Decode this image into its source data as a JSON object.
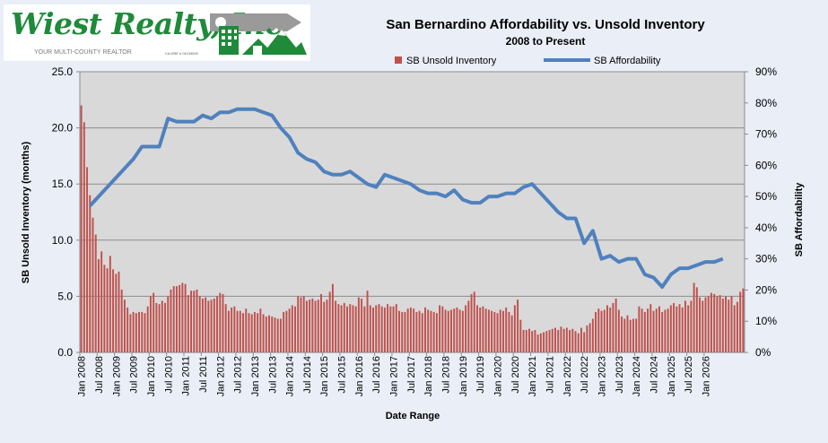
{
  "logo": {
    "name": "Wiest Realty, Inc",
    "tagline": "YOUR MULTI-COUNTY REALTOR",
    "license": "CA DRE # 01193000"
  },
  "chart_data": {
    "type": "bar+line",
    "title": "San Bernardino Affordability vs. Unsold Inventory",
    "subtitle": "2008 to Present",
    "xlabel": "Date Range",
    "ylabel_left": "SB Unsold  Inventory (months)",
    "ylabel_right": "SB Affordability",
    "ylim_left": [
      0,
      25
    ],
    "yticks_left": [
      "0.0",
      "5.0",
      "10.0",
      "15.0",
      "20.0",
      "25.0"
    ],
    "ylim_right": [
      0,
      90
    ],
    "yticks_right": [
      "0%",
      "10%",
      "20%",
      "30%",
      "40%",
      "50%",
      "60%",
      "70%",
      "80%",
      "90%"
    ],
    "legend_placement": "top",
    "colors": {
      "bars": "#c0504d",
      "line": "#4f81bd",
      "plot_bg": "#d9d9d9",
      "grid": "#8c8c8c"
    },
    "series": [
      {
        "name": "SB Unsold Inventory",
        "kind": "bar",
        "axis": "left",
        "frequency": "monthly",
        "start": "Jan 2008"
      },
      {
        "name": "SB Affordability",
        "kind": "line",
        "axis": "right",
        "frequency": "quarterly",
        "start": "Apr 2008"
      }
    ],
    "x_ticks": [
      "Jan 2008",
      "Jul 2008",
      "Jan 2009",
      "Jul 2009",
      "Jan 2010",
      "Jul 2010",
      "Jan 2011",
      "Jul 2011",
      "Jan 2012",
      "Jul 2012",
      "Jan 2013",
      "Jul 2013",
      "Jan 2014",
      "Jul 2014",
      "Jan 2015",
      "Jul 2015",
      "Jan 2016",
      "Jul 2016",
      "Jan 2017",
      "Jul 2017",
      "Jan 2018",
      "Jul 2018",
      "Jan 2019",
      "Jul 2019",
      "Jan 2020",
      "Jul 2020",
      "Jan 2021",
      "Jul 2021",
      "Jan 2022",
      "Jul 2022",
      "Jan 2023",
      "Jul 2023",
      "Jan 2024",
      "Jul 2024",
      "Jan 2025",
      "Jul 2025",
      "Jan 2026"
    ],
    "inventory_monthly": [
      22.0,
      20.5,
      16.5,
      14.0,
      12.0,
      10.5,
      8.3,
      9.0,
      7.8,
      7.5,
      8.6,
      7.4,
      7.0,
      7.2,
      5.6,
      4.7,
      4.0,
      3.4,
      3.6,
      3.5,
      3.6,
      3.6,
      3.5,
      4.1,
      5.0,
      5.3,
      4.4,
      4.3,
      4.6,
      4.4,
      5.0,
      5.6,
      5.9,
      5.9,
      6.0,
      6.2,
      6.1,
      5.1,
      5.5,
      5.5,
      5.6,
      5.0,
      4.8,
      4.9,
      4.6,
      4.7,
      4.8,
      5.0,
      5.3,
      5.2,
      4.3,
      3.7,
      4.0,
      4.1,
      3.7,
      3.7,
      3.5,
      3.9,
      3.5,
      3.4,
      3.6,
      3.5,
      3.9,
      3.4,
      3.2,
      3.3,
      3.2,
      3.1,
      3.0,
      3.0,
      3.6,
      3.7,
      3.9,
      4.2,
      4.1,
      5.0,
      4.9,
      5.0,
      4.6,
      4.7,
      4.8,
      4.6,
      4.7,
      5.2,
      4.5,
      4.7,
      5.4,
      6.1,
      4.6,
      4.3,
      4.2,
      4.4,
      4.1,
      4.3,
      4.2,
      4.1,
      4.9,
      4.8,
      4.1,
      5.5,
      4.2,
      4.0,
      4.2,
      4.3,
      4.1,
      4.0,
      4.3,
      4.1,
      4.1,
      4.3,
      3.7,
      3.6,
      3.6,
      3.9,
      4.0,
      3.9,
      3.6,
      3.7,
      3.5,
      4.0,
      3.8,
      3.7,
      3.6,
      3.5,
      4.2,
      4.1,
      3.8,
      3.7,
      3.8,
      3.9,
      4.0,
      3.8,
      3.7,
      4.2,
      4.6,
      5.2,
      5.4,
      4.2,
      4.0,
      4.1,
      3.9,
      3.8,
      3.7,
      3.6,
      3.5,
      3.8,
      3.7,
      4.0,
      3.6,
      3.3,
      4.2,
      4.7,
      2.9,
      2.0,
      2.0,
      2.1,
      1.9,
      2.0,
      1.6,
      1.7,
      1.8,
      1.9,
      2.0,
      2.1,
      2.2,
      2.0,
      2.3,
      2.1,
      2.2,
      2.0,
      2.1,
      1.9,
      1.7,
      2.2,
      1.8,
      2.4,
      2.6,
      3.0,
      3.6,
      3.9,
      3.7,
      3.8,
      4.2,
      4.0,
      4.4,
      4.8,
      3.8,
      3.2,
      3.0,
      3.3,
      2.9,
      3.0,
      3.0,
      4.1,
      3.9,
      3.6,
      3.9,
      4.3,
      3.7,
      3.9,
      4.1,
      3.6,
      3.8,
      3.9,
      4.2,
      4.4,
      4.1,
      4.3,
      4.0,
      4.6,
      4.2,
      4.6,
      6.2,
      5.8,
      4.9,
      4.6,
      4.9,
      5.0,
      5.3,
      5.2,
      5.0,
      5.1,
      4.8,
      5.0,
      4.7,
      5.0,
      4.2,
      4.5,
      5.4,
      5.7
    ],
    "affordability_quarterly": [
      47,
      50,
      53,
      56,
      59,
      62,
      66,
      66,
      66,
      75,
      74,
      74,
      74,
      76,
      75,
      77,
      77,
      78,
      78,
      78,
      77,
      76,
      72,
      69,
      64,
      62,
      61,
      58,
      57,
      57,
      58,
      56,
      54,
      53,
      57,
      56,
      55,
      54,
      52,
      51,
      51,
      50,
      52,
      49,
      48,
      48,
      50,
      50,
      51,
      51,
      53,
      54,
      51,
      48,
      45,
      43,
      43,
      35,
      39,
      30,
      31,
      29,
      30,
      30,
      25,
      24,
      21,
      25,
      27,
      27,
      28,
      29,
      29,
      30
    ]
  }
}
